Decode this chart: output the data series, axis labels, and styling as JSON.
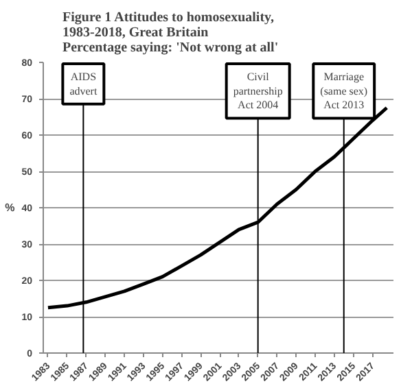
{
  "chart_data": {
    "type": "line",
    "title": "Figure 1  Attitudes to homosexuality,\n1983-2018, Great Britain\nPercentage saying:  'Not wrong at all'",
    "ylabel": "%",
    "x": [
      1983,
      1985,
      1987,
      1989,
      1991,
      1993,
      1995,
      1997,
      1999,
      2001,
      2003,
      2005,
      2007,
      2009,
      2011,
      2013,
      2015,
      2017,
      2018.5
    ],
    "series": [
      {
        "color": "#000000",
        "values": [
          12.5,
          13,
          14,
          15.5,
          17,
          19,
          21,
          24,
          27,
          30.5,
          34,
          36,
          41,
          45,
          50,
          54,
          59,
          64,
          67.5
        ]
      }
    ],
    "xlim": [
      1982.5,
      2019.2
    ],
    "ylim": [
      0,
      80
    ],
    "xticks": [
      1983,
      1985,
      1987,
      1989,
      1991,
      1993,
      1995,
      1997,
      1999,
      2001,
      2003,
      2005,
      2007,
      2009,
      2011,
      2013,
      2015,
      2017
    ],
    "yticks": [
      0,
      10,
      20,
      30,
      40,
      50,
      60,
      70,
      80
    ],
    "ref_lines": [
      {
        "axis": "x",
        "value": 1986.7,
        "label": "AIDS\nadvert",
        "color": "#000000"
      },
      {
        "axis": "x",
        "value": 2005,
        "label": "Civil\npartnership\nAct 2004",
        "color": "#000000"
      },
      {
        "axis": "x",
        "value": 2014,
        "label": "Marriage\n(same sex)\nAct 2013",
        "color": "#000000"
      }
    ],
    "grid": "y",
    "marker": "none",
    "line_style": "solid"
  }
}
